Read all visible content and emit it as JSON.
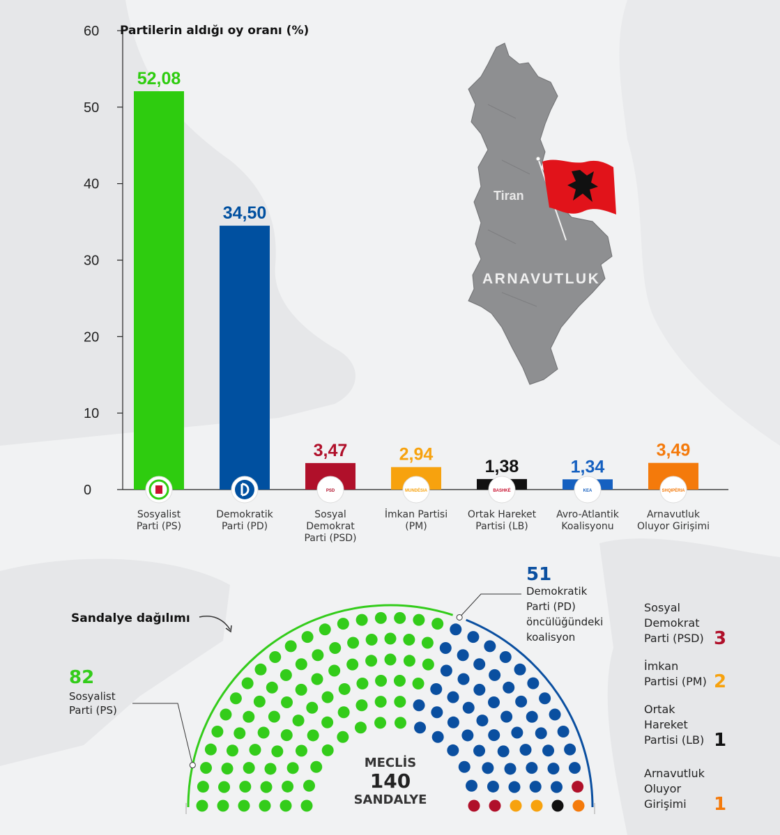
{
  "chart_data": {
    "type": "bar",
    "title": "Partilerin aldığı oy oranı (%)",
    "ylim": [
      0,
      60
    ],
    "yticks": [
      0,
      10,
      20,
      30,
      40,
      50,
      60
    ],
    "categories": [
      "Sosyalist Parti (PS)",
      "Demokratik Parti (PD)",
      "Sosyal Demokrat Parti (PSD)",
      "İmkan Partisi (PM)",
      "Ortak Hareket Partisi (LB)",
      "Avro-Atlantik Koalisyonu",
      "Arnavutluk Oluyor Girişimi"
    ],
    "values": [
      52.08,
      34.5,
      3.47,
      2.94,
      1.38,
      1.34,
      3.49
    ],
    "value_labels": [
      "52,08",
      "34,50",
      "3,47",
      "2,94",
      "1,38",
      "1,34",
      "3,49"
    ],
    "colors": [
      "#2ecc0f",
      "#0050a0",
      "#b0102a",
      "#f7a20e",
      "#111111",
      "#1560c0",
      "#f47a0b"
    ],
    "logo_texts": [
      "",
      "",
      "PSD",
      "MUNDËSIA",
      "BASHKË",
      "KEA",
      "SHQIPËRIA"
    ],
    "grid": false
  },
  "axis_labels": [
    "60",
    "50",
    "40",
    "30",
    "20",
    "10",
    "0"
  ],
  "bar_labels": [
    [
      "Sosyalist",
      "Parti (PS)"
    ],
    [
      "Demokratik",
      "Parti (PD)"
    ],
    [
      "Sosyal",
      "Demokrat",
      "Parti (PSD)"
    ],
    [
      "İmkan Partisi",
      "(PM)"
    ],
    [
      "Ortak Hareket",
      "Partisi (LB)"
    ],
    [
      "Avro-Atlantik",
      "Koalisyonu"
    ],
    [
      "Arnavutluk",
      "Oluyor Girişimi"
    ]
  ],
  "map": {
    "city": "Tiran",
    "country": "ARNAVUTLUK"
  },
  "seats": {
    "title": "Sandalye dağılımı",
    "total_top": "MECLİS",
    "total": "140",
    "total_bottom": "SANDALYE",
    "ps": {
      "count": "82",
      "lines": [
        "Sosyalist",
        "Parti (PS)"
      ],
      "color": "#33cc1a"
    },
    "pd": {
      "count": "51",
      "lines": [
        "Demokratik",
        "Parti (PD)",
        "öncülüğündeki",
        "koalisyon"
      ],
      "color": "#0a4fa0"
    },
    "others": [
      {
        "lines": [
          "Sosyal",
          "Demokrat",
          "Parti (PSD)"
        ],
        "count": "3",
        "color": "#b0102a"
      },
      {
        "lines": [
          "İmkan",
          "Partisi (PM)"
        ],
        "count": "2",
        "color": "#f7a20e"
      },
      {
        "lines": [
          "Ortak",
          "Hareket",
          "Partisi (LB)"
        ],
        "count": "1",
        "color": "#111111"
      },
      {
        "lines": [
          "Arnavutluk",
          "Oluyor",
          "Girişimi"
        ],
        "count": "1",
        "color": "#f47a0b"
      }
    ]
  }
}
